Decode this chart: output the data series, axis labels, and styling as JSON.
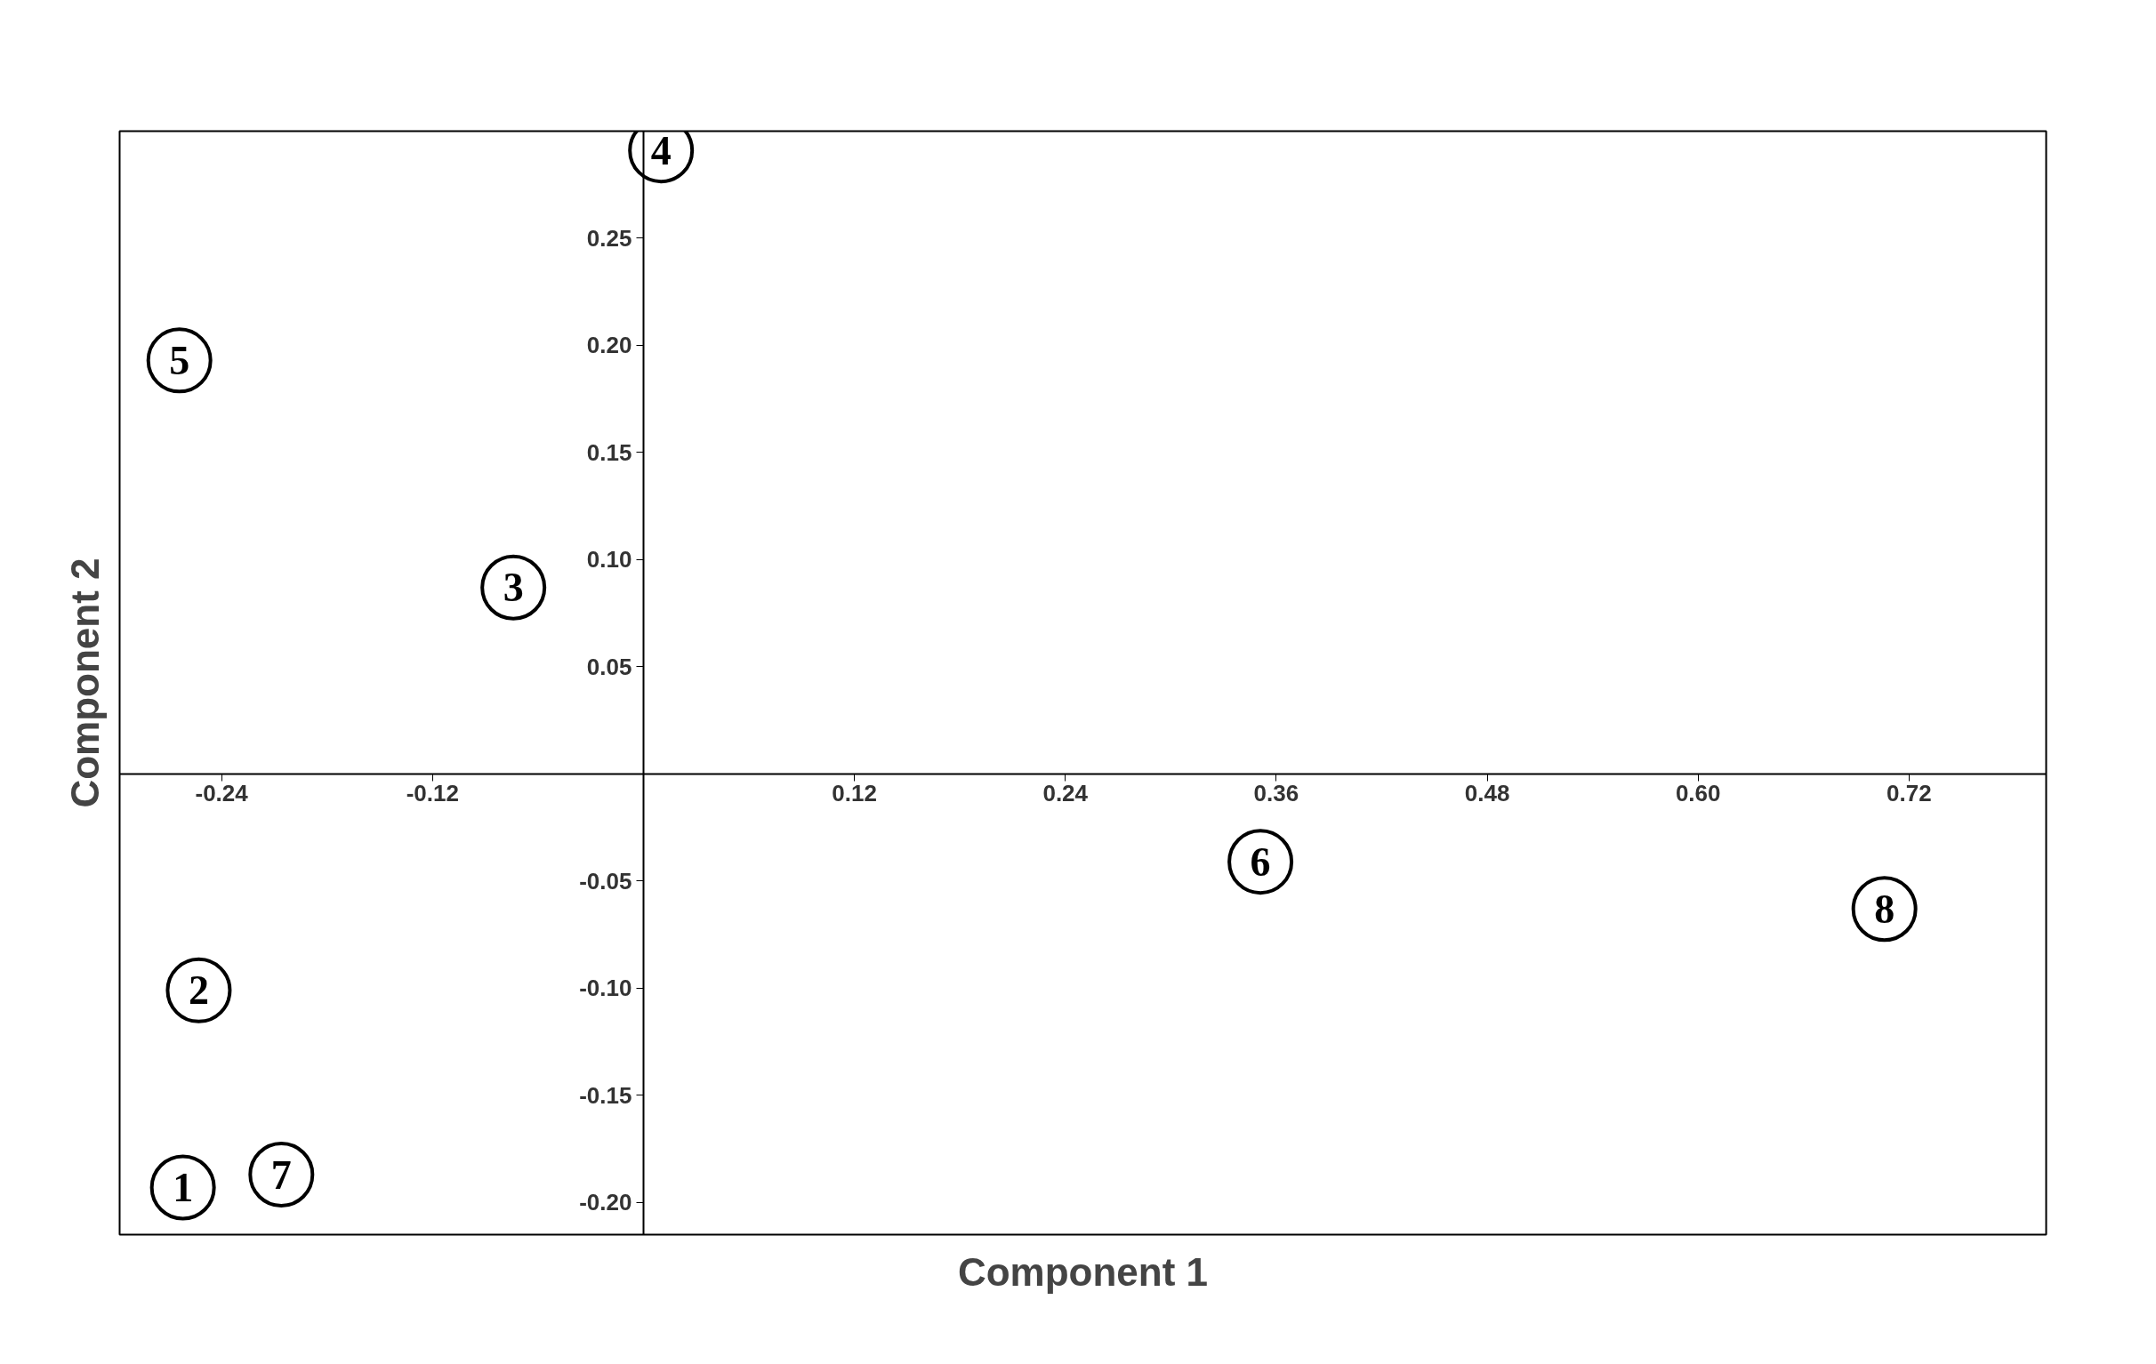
{
  "chart_data": {
    "type": "scatter",
    "xlabel": "Component 1",
    "ylabel": "Component 2",
    "x": [
      -0.262,
      -0.253,
      -0.074,
      0.01,
      -0.264,
      0.351,
      -0.206,
      0.706
    ],
    "values": [
      -0.193,
      -0.101,
      0.087,
      0.291,
      0.193,
      -0.041,
      -0.187,
      -0.063
    ],
    "color": "#000000",
    "marker": "circle",
    "annotations": [
      {
        "text": "1",
        "x": -0.262,
        "y": -0.193
      },
      {
        "text": "2",
        "x": -0.253,
        "y": -0.101
      },
      {
        "text": "3",
        "x": -0.074,
        "y": 0.087
      },
      {
        "text": "4",
        "x": 0.01,
        "y": 0.291
      },
      {
        "text": "5",
        "x": -0.264,
        "y": 0.193
      },
      {
        "text": "6",
        "x": 0.351,
        "y": -0.041
      },
      {
        "text": "7",
        "x": -0.206,
        "y": -0.187
      },
      {
        "text": "8",
        "x": 0.706,
        "y": -0.063
      }
    ],
    "xlim": [
      -0.298,
      0.798
    ],
    "ylim": [
      -0.215,
      0.3
    ],
    "xticks": [
      {
        "value": -0.24,
        "label": "-0.24"
      },
      {
        "value": -0.12,
        "label": "-0.12"
      },
      {
        "value": 0.12,
        "label": "0.12"
      },
      {
        "value": 0.24,
        "label": "0.24"
      },
      {
        "value": 0.36,
        "label": "0.36"
      },
      {
        "value": 0.48,
        "label": "0.48"
      },
      {
        "value": 0.6,
        "label": "0.60"
      },
      {
        "value": 0.72,
        "label": "0.72"
      }
    ],
    "yticks": [
      {
        "value": -0.2,
        "label": "-0.20"
      },
      {
        "value": -0.15,
        "label": "-0.15"
      },
      {
        "value": -0.1,
        "label": "-0.10"
      },
      {
        "value": -0.05,
        "label": "-0.05"
      },
      {
        "value": 0.05,
        "label": "0.05"
      },
      {
        "value": 0.1,
        "label": "0.10"
      },
      {
        "value": 0.15,
        "label": "0.15"
      },
      {
        "value": 0.2,
        "label": "0.20"
      },
      {
        "value": 0.25,
        "label": "0.25"
      }
    ],
    "grid": false
  }
}
